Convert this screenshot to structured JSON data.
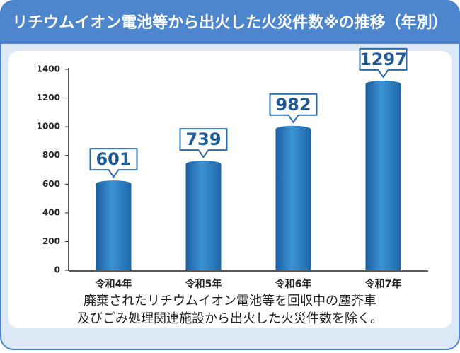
{
  "chart_data": {
    "type": "bar",
    "title": "リチウムイオン電池等から出火した火災件数※の推移（年別）",
    "categories": [
      "令和4年",
      "令和5年",
      "令和6年",
      "令和7年"
    ],
    "values": [
      601,
      739,
      982,
      1297
    ],
    "color": "#2b7cc0",
    "ylim": [
      0,
      1400
    ],
    "yticks": [
      0,
      200,
      400,
      600,
      800,
      1000,
      1200,
      1400
    ],
    "grid": false,
    "notes": [
      "廃棄されたリチウムイオン電池等を回収中の塵芥車",
      "及びごみ処理関連施設から出火した火災件数を除く。"
    ]
  }
}
